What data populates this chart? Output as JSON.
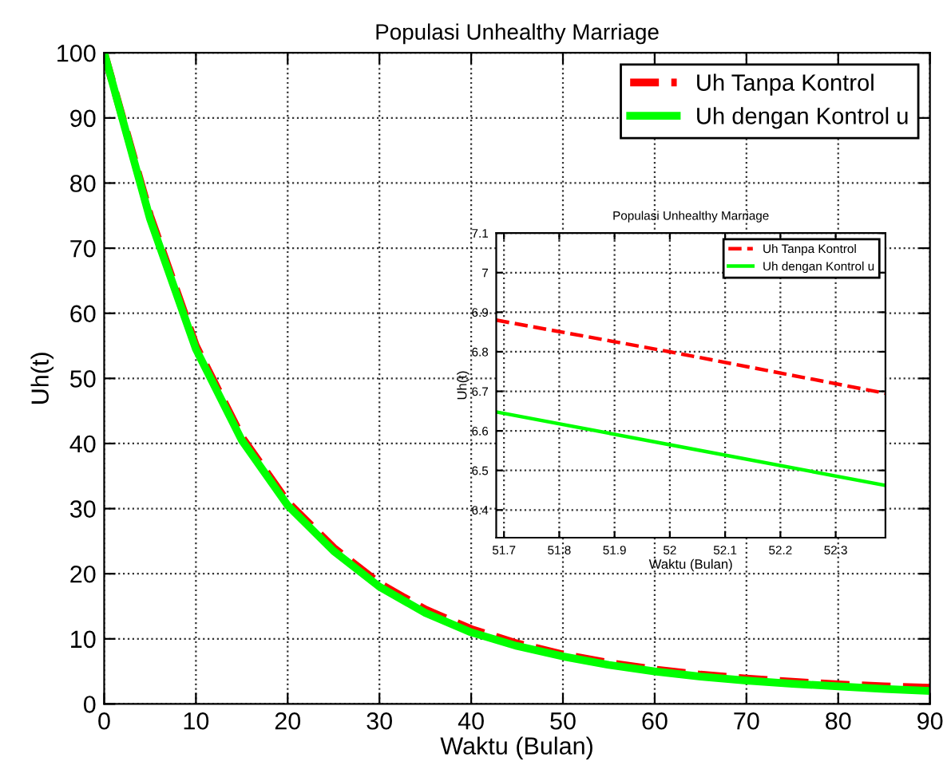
{
  "chart_data": [
    {
      "type": "line",
      "title": "Populasi Unhealthy Marriage",
      "xlabel": "Waktu (Bulan)",
      "ylabel": "Uh(t)",
      "x": [
        0,
        5,
        10,
        15,
        20,
        25,
        30,
        35,
        40,
        45,
        50,
        55,
        60,
        65,
        70,
        75,
        80,
        85,
        90
      ],
      "xlim": [
        0,
        90
      ],
      "ylim": [
        0,
        100
      ],
      "xticks": [
        0,
        10,
        20,
        30,
        40,
        50,
        60,
        70,
        80,
        90
      ],
      "yticks": [
        0,
        10,
        20,
        30,
        40,
        50,
        60,
        70,
        80,
        90,
        100
      ],
      "grid": true,
      "legend": "top right",
      "series": [
        {
          "name": "Uh Tanpa Kontrol",
          "color": "#ff0000",
          "line_style": "dashed",
          "values": [
            100,
            75,
            55,
            41,
            31,
            24,
            18.5,
            14.5,
            11.5,
            9.3,
            7.6,
            6.3,
            5.3,
            4.5,
            3.9,
            3.4,
            3.0,
            2.7,
            2.5
          ]
        },
        {
          "name": "Uh dengan Kontrol u",
          "color": "#00ff00",
          "line_style": "solid",
          "values": [
            100,
            74.5,
            54.5,
            40.5,
            30.5,
            23.5,
            18,
            14,
            11,
            8.9,
            7.3,
            6.0,
            5.0,
            4.2,
            3.6,
            3.1,
            2.7,
            2.3,
            2.0
          ]
        }
      ]
    },
    {
      "type": "line",
      "title": "Populasi Unhealthy Marriage",
      "xlabel": "Waktu (Bulan)",
      "ylabel": "Uh(t)",
      "x": [
        51.686,
        52.0,
        52.39
      ],
      "xlim": [
        51.686,
        52.39
      ],
      "ylim": [
        6.33,
        7.1
      ],
      "xticks": [
        51.7,
        51.8,
        51.9,
        52,
        52.1,
        52.2,
        52.3
      ],
      "yticks": [
        6.4,
        6.5,
        6.6,
        6.7,
        6.8,
        6.9,
        7,
        7.1
      ],
      "grid": true,
      "legend": "top right",
      "series": [
        {
          "name": "Uh Tanpa Kontrol",
          "color": "#ff0000",
          "line_style": "dashed",
          "values": [
            6.88,
            6.8,
            6.695
          ]
        },
        {
          "name": "Uh dengan Kontrol u",
          "color": "#00ff00",
          "line_style": "solid",
          "values": [
            6.648,
            6.565,
            6.462
          ]
        }
      ]
    }
  ]
}
